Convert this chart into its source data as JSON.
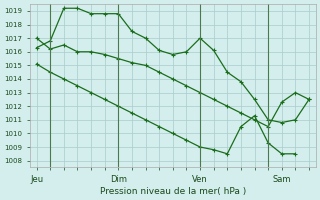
{
  "title": "",
  "xlabel": "Pression niveau de la mer( hPa )",
  "ylabel": "",
  "bg_color": "#d4eeee",
  "grid_color": "#aacccc",
  "line_color": "#1a6e1a",
  "marker_color": "#1a6e1a",
  "xtick_labels": [
    "Jeu",
    "Dim",
    "Ven",
    "Sam"
  ],
  "xtick_pos": [
    0,
    6,
    12,
    18
  ],
  "vline_pos": [
    1,
    6,
    12,
    17
  ],
  "series1_x": [
    0,
    1,
    2,
    3,
    4,
    5,
    6,
    7,
    8,
    9,
    10,
    11,
    12,
    13,
    14,
    15,
    16,
    17,
    18,
    19,
    20
  ],
  "series1_y": [
    1017.0,
    1016.2,
    1016.5,
    1016.0,
    1016.0,
    1015.8,
    1015.5,
    1015.2,
    1015.0,
    1014.5,
    1014.0,
    1013.5,
    1013.0,
    1012.5,
    1012.0,
    1011.5,
    1011.0,
    1010.5,
    1012.3,
    1013.0,
    1012.5
  ],
  "series2_x": [
    0,
    1,
    2,
    3,
    4,
    5,
    6,
    7,
    8,
    9,
    10,
    11,
    12,
    13,
    14,
    15,
    16,
    17,
    18,
    19
  ],
  "series2_y": [
    1015.1,
    1014.5,
    1014.0,
    1013.5,
    1013.0,
    1012.5,
    1012.0,
    1011.5,
    1011.0,
    1010.5,
    1010.0,
    1009.5,
    1009.0,
    1008.8,
    1008.5,
    1010.5,
    1011.3,
    1009.3,
    1008.5,
    1008.5
  ],
  "series3_x": [
    0,
    1,
    2,
    3,
    4,
    5,
    6,
    7,
    8,
    9,
    10,
    11,
    12,
    13,
    14,
    15,
    16,
    17,
    18,
    19,
    20
  ],
  "series3_y": [
    1016.3,
    1016.8,
    1019.2,
    1019.2,
    1018.8,
    1018.8,
    1018.8,
    1017.5,
    1017.0,
    1016.1,
    1015.8,
    1016.0,
    1017.0,
    1016.1,
    1014.5,
    1013.8,
    1012.5,
    1011.0,
    1010.8,
    1011.0,
    1012.5
  ]
}
